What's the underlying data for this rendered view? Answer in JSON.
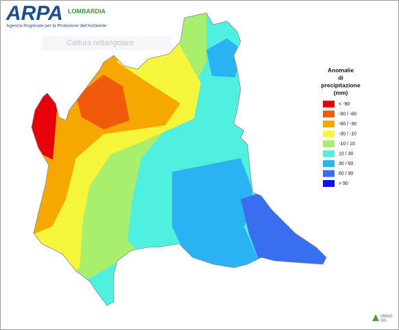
{
  "header": {
    "logo": "ARPA",
    "region": "LOMBARDIA",
    "agency": "Agenzia Regionale per la Protezione dell'Ambiente"
  },
  "overlay": {
    "label": "Cattura rettangolare"
  },
  "legend": {
    "title": [
      "Anomalie",
      "di",
      "precipitazione",
      "(mm)"
    ],
    "items": [
      {
        "label": "< -90",
        "color": "#e8000b"
      },
      {
        "label": "-90 / -60",
        "color": "#f05a0a"
      },
      {
        "label": "-60 / -30",
        "color": "#f7a800"
      },
      {
        "label": "-30 / -10",
        "color": "#f5f53c"
      },
      {
        "label": "-10 / 10",
        "color": "#a8ef6e"
      },
      {
        "label": "10 / 30",
        "color": "#4ff0e0"
      },
      {
        "label": "30 / 60",
        "color": "#2ab2f2"
      },
      {
        "label": "60 / 90",
        "color": "#3a6ef0"
      },
      {
        "label": "> 90",
        "color": "#0a14e6"
      }
    ]
  },
  "footer": {
    "logo": [
      "GRASS",
      "GIS"
    ]
  }
}
